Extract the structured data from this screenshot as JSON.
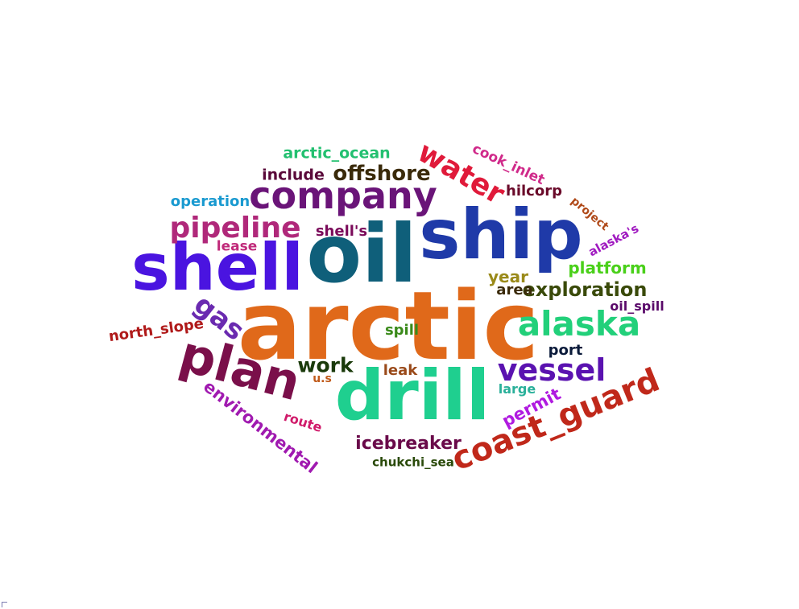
{
  "words": [
    {
      "text": "arctic",
      "color": "#e0691a"
    },
    {
      "text": "oil",
      "color": "#0f5f7a"
    },
    {
      "text": "ship",
      "color": "#1f3aa8"
    },
    {
      "text": "shell",
      "color": "#4a14e0"
    },
    {
      "text": "drill",
      "color": "#1fcf8f"
    },
    {
      "text": "company",
      "color": "#6a1478"
    },
    {
      "text": "plan",
      "color": "#7a0f4a"
    },
    {
      "text": "coast_guard",
      "color": "#c0281a"
    },
    {
      "text": "alaska",
      "color": "#22d07a"
    },
    {
      "text": "vessel",
      "color": "#5a12b0"
    },
    {
      "text": "pipeline",
      "color": "#b0287a"
    },
    {
      "text": "water",
      "color": "#e01a3a"
    },
    {
      "text": "offshore",
      "color": "#3a2a0a"
    },
    {
      "text": "exploration",
      "color": "#3a4a0a"
    },
    {
      "text": "gas",
      "color": "#6a2ab0"
    },
    {
      "text": "environmental",
      "color": "#a01ab0"
    },
    {
      "text": "icebreaker",
      "color": "#6a0a4a"
    },
    {
      "text": "platform",
      "color": "#4ad01a"
    },
    {
      "text": "work",
      "color": "#1a3a0a"
    },
    {
      "text": "permit",
      "color": "#b01ae0"
    },
    {
      "text": "north_slope",
      "color": "#b01a1a"
    },
    {
      "text": "arctic_ocean",
      "color": "#22c070"
    },
    {
      "text": "include",
      "color": "#5a0a3a"
    },
    {
      "text": "cook_inlet",
      "color": "#d02a8a"
    },
    {
      "text": "hilcorp",
      "color": "#6a0a2a"
    },
    {
      "text": "operation",
      "color": "#1a9ad0"
    },
    {
      "text": "shell's",
      "color": "#7a0a5a"
    },
    {
      "text": "lease",
      "color": "#c02a7a"
    },
    {
      "text": "year",
      "color": "#9a8a1a"
    },
    {
      "text": "area",
      "color": "#3a2a0a"
    },
    {
      "text": "oil_spill",
      "color": "#5a0a6a"
    },
    {
      "text": "port",
      "color": "#0a1a3a"
    },
    {
      "text": "spill",
      "color": "#3a8a1a"
    },
    {
      "text": "leak",
      "color": "#9a4a1a"
    },
    {
      "text": "u.s",
      "color": "#c05a1a"
    },
    {
      "text": "large",
      "color": "#2ab09a"
    },
    {
      "text": "route",
      "color": "#d01a6a"
    },
    {
      "text": "chukchi_sea",
      "color": "#2a4a0a"
    },
    {
      "text": "project",
      "color": "#b04a1a"
    },
    {
      "text": "alaska's",
      "color": "#a01ac0"
    }
  ]
}
